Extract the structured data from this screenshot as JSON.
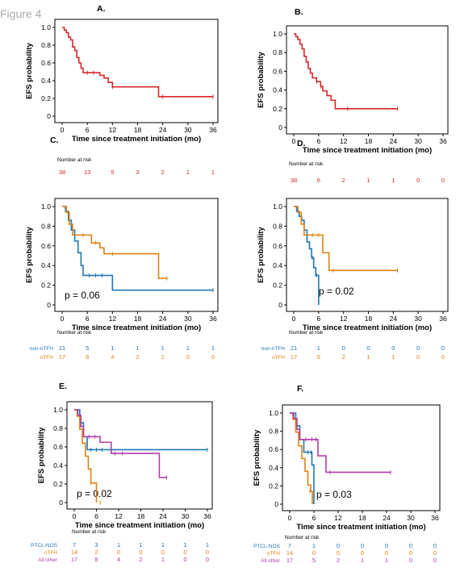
{
  "figure_title": "Figure 4",
  "panels": [
    {
      "id": "A",
      "label": "A.",
      "ylabel": "EFS probability",
      "xlabel": "Time since treatment initiation (mo)",
      "pvalue": "",
      "risk_title": "Number at risk"
    },
    {
      "id": "B",
      "label": "B.",
      "ylabel": "EFS probability",
      "xlabel": "Time since treatment initiation (mo)",
      "pvalue": "",
      "risk_title": "Number at risk"
    },
    {
      "id": "C",
      "label": "C.",
      "ylabel": "EFS probability",
      "xlabel": "Time since treatment initiation (mo)",
      "pvalue": "p = 0.06",
      "risk_title": "Number at risk"
    },
    {
      "id": "D",
      "label": "D.",
      "ylabel": "EFS probability",
      "xlabel": "Time since treatment initiation (mo)",
      "pvalue": "p = 0.02",
      "risk_title": "Number at risk"
    },
    {
      "id": "E",
      "label": "E.",
      "ylabel": "EFS probability",
      "xlabel": "Time since treatment initiation (mo)",
      "pvalue": "p = 0.02",
      "risk_title": "Number at risk"
    },
    {
      "id": "F",
      "label": "F.",
      "ylabel": "EFS probability",
      "xlabel": "Time since treatment initiation (mo)",
      "pvalue": "p = 0.03",
      "risk_title": "Number at risk"
    }
  ],
  "chart_data": [
    {
      "panel": "A",
      "type": "line",
      "step": true,
      "xlim": [
        0,
        36
      ],
      "ylim": [
        0,
        1
      ],
      "xticks": [
        0,
        6,
        12,
        18,
        24,
        30,
        36
      ],
      "yticks": [
        "0",
        "0.2",
        "0.4",
        "0.6",
        "0.8",
        "1.0"
      ],
      "series": [
        {
          "name": "",
          "color": "#d62728",
          "steps": [
            [
              0,
              1.0
            ],
            [
              0.5,
              0.97
            ],
            [
              1,
              0.94
            ],
            [
              1.5,
              0.89
            ],
            [
              2,
              0.86
            ],
            [
              2.5,
              0.78
            ],
            [
              3,
              0.74
            ],
            [
              3.5,
              0.66
            ],
            [
              4,
              0.6
            ],
            [
              4.5,
              0.54
            ],
            [
              5,
              0.49
            ],
            [
              9,
              0.46
            ],
            [
              10,
              0.43
            ],
            [
              11,
              0.38
            ],
            [
              12,
              0.33
            ],
            [
              23,
              0.22
            ],
            [
              36,
              0.22
            ]
          ],
          "censor": [
            [
              6,
              0.49
            ],
            [
              7.5,
              0.49
            ],
            [
              12,
              0.33
            ],
            [
              24,
              0.22
            ],
            [
              36,
              0.22
            ]
          ]
        }
      ],
      "risk_table": {
        "x": [
          0,
          6,
          12,
          18,
          24,
          30,
          36
        ],
        "rows": [
          {
            "label": "",
            "color": "#d62728",
            "values": [
              "38",
              "13",
              "5",
              "3",
              "2",
              "1",
              "1"
            ]
          }
        ]
      }
    },
    {
      "panel": "B",
      "type": "line",
      "step": true,
      "xlim": [
        0,
        36
      ],
      "ylim": [
        0,
        1
      ],
      "xticks": [
        0,
        6,
        12,
        18,
        24,
        30,
        36
      ],
      "yticks": [
        "0",
        "0.2",
        "0.4",
        "0.6",
        "0.8",
        "1.0"
      ],
      "series": [
        {
          "name": "",
          "color": "#d62728",
          "steps": [
            [
              0,
              1.0
            ],
            [
              0.5,
              0.97
            ],
            [
              1,
              0.94
            ],
            [
              1.5,
              0.89
            ],
            [
              2,
              0.84
            ],
            [
              2.5,
              0.76
            ],
            [
              3,
              0.7
            ],
            [
              3.5,
              0.63
            ],
            [
              4,
              0.58
            ],
            [
              4.5,
              0.53
            ],
            [
              5.5,
              0.49
            ],
            [
              6.5,
              0.44
            ],
            [
              7,
              0.39
            ],
            [
              8,
              0.34
            ],
            [
              9,
              0.29
            ],
            [
              10,
              0.2
            ],
            [
              25,
              0.2
            ]
          ],
          "censor": [
            [
              5.5,
              0.49
            ],
            [
              6.5,
              0.44
            ],
            [
              13,
              0.2
            ],
            [
              25,
              0.2
            ]
          ]
        }
      ],
      "risk_table": {
        "x": [
          0,
          6,
          12,
          18,
          24,
          30,
          36
        ],
        "rows": [
          {
            "label": "",
            "color": "#d62728",
            "values": [
              "38",
              "6",
              "2",
              "1",
              "1",
              "0",
              "0"
            ]
          }
        ]
      }
    },
    {
      "panel": "C",
      "type": "line",
      "step": true,
      "xlim": [
        0,
        36
      ],
      "ylim": [
        0,
        1
      ],
      "xticks": [
        0,
        6,
        12,
        18,
        24,
        30,
        36
      ],
      "yticks": [
        "0",
        "0.2",
        "0.4",
        "0.6",
        "0.8",
        "1.0"
      ],
      "series": [
        {
          "name": "non-nTFH",
          "color": "#1f77b4",
          "steps": [
            [
              0,
              1.0
            ],
            [
              0.8,
              0.95
            ],
            [
              1.5,
              0.86
            ],
            [
              2.2,
              0.76
            ],
            [
              3,
              0.65
            ],
            [
              3.8,
              0.53
            ],
            [
              4.5,
              0.4
            ],
            [
              5,
              0.3
            ],
            [
              12,
              0.15
            ],
            [
              36,
              0.15
            ]
          ],
          "censor": [
            [
              6.5,
              0.3
            ],
            [
              8,
              0.3
            ],
            [
              9.5,
              0.3
            ],
            [
              36,
              0.15
            ]
          ]
        },
        {
          "name": "nTFH",
          "color": "#e08214",
          "steps": [
            [
              0,
              1.0
            ],
            [
              1,
              0.94
            ],
            [
              1.7,
              0.82
            ],
            [
              2.5,
              0.71
            ],
            [
              7,
              0.63
            ],
            [
              9,
              0.58
            ],
            [
              10,
              0.52
            ],
            [
              23,
              0.27
            ],
            [
              25,
              0.27
            ]
          ],
          "censor": [
            [
              5,
              0.71
            ],
            [
              8,
              0.63
            ],
            [
              12,
              0.52
            ],
            [
              25,
              0.27
            ]
          ]
        }
      ],
      "risk_table": {
        "x": [
          0,
          6,
          12,
          18,
          24,
          30,
          36
        ],
        "rows": [
          {
            "label": "non-nTFH",
            "color": "#1f77b4",
            "values": [
              "21",
              "5",
              "1",
              "1",
              "1",
              "1",
              "1"
            ]
          },
          {
            "label": "nTFH",
            "color": "#e08214",
            "values": [
              "17",
              "8",
              "4",
              "2",
              "1",
              "0",
              "0"
            ]
          }
        ]
      }
    },
    {
      "panel": "D",
      "type": "line",
      "step": true,
      "xlim": [
        0,
        36
      ],
      "ylim": [
        0,
        1
      ],
      "xticks": [
        0,
        6,
        12,
        18,
        24,
        30,
        36
      ],
      "yticks": [
        "0",
        "0.2",
        "0.4",
        "0.6",
        "0.8",
        "1.0"
      ],
      "series": [
        {
          "name": "non-nTFH",
          "color": "#1f77b4",
          "steps": [
            [
              0,
              1.0
            ],
            [
              0.7,
              0.95
            ],
            [
              1.3,
              0.9
            ],
            [
              1.9,
              0.86
            ],
            [
              2.5,
              0.76
            ],
            [
              3.2,
              0.64
            ],
            [
              3.8,
              0.57
            ],
            [
              4.3,
              0.48
            ],
            [
              4.8,
              0.38
            ],
            [
              5.3,
              0.3
            ],
            [
              6,
              0.0
            ]
          ],
          "censor": [
            [
              4.5,
              0.48
            ],
            [
              5.5,
              0.3
            ]
          ]
        },
        {
          "name": "nTFH",
          "color": "#e08214",
          "steps": [
            [
              0,
              1.0
            ],
            [
              1,
              0.94
            ],
            [
              1.8,
              0.82
            ],
            [
              2.5,
              0.71
            ],
            [
              7,
              0.53
            ],
            [
              8.5,
              0.35
            ],
            [
              25,
              0.35
            ]
          ],
          "censor": [
            [
              4.5,
              0.71
            ],
            [
              6,
              0.71
            ],
            [
              9.5,
              0.35
            ],
            [
              25,
              0.35
            ]
          ]
        }
      ],
      "risk_table": {
        "x": [
          0,
          6,
          12,
          18,
          24,
          30,
          36
        ],
        "rows": [
          {
            "label": "non-nTFH",
            "color": "#1f77b4",
            "values": [
              "21",
              "1",
              "0",
              "0",
              "0",
              "0",
              "0"
            ]
          },
          {
            "label": "nTFH",
            "color": "#e08214",
            "values": [
              "17",
              "5",
              "2",
              "1",
              "1",
              "0",
              "0"
            ]
          }
        ]
      }
    },
    {
      "panel": "E",
      "type": "line",
      "step": true,
      "xlim": [
        0,
        36
      ],
      "ylim": [
        0,
        1
      ],
      "xticks": [
        0,
        6,
        12,
        18,
        24,
        30,
        36
      ],
      "yticks": [
        "0",
        "0.2",
        "0.4",
        "0.6",
        "0.8",
        "1.0"
      ],
      "series": [
        {
          "name": "PTCL-NOS",
          "color": "#1f77b4",
          "steps": [
            [
              0,
              1.0
            ],
            [
              1.5,
              0.86
            ],
            [
              2.5,
              0.71
            ],
            [
              3.5,
              0.57
            ],
            [
              36,
              0.57
            ]
          ],
          "censor": [
            [
              4.5,
              0.57
            ],
            [
              6,
              0.57
            ],
            [
              7.5,
              0.57
            ],
            [
              36,
              0.57
            ]
          ]
        },
        {
          "name": "nTFH",
          "color": "#e08214",
          "steps": [
            [
              0,
              1.0
            ],
            [
              0.8,
              0.93
            ],
            [
              1.5,
              0.79
            ],
            [
              2.2,
              0.64
            ],
            [
              3,
              0.5
            ],
            [
              3.8,
              0.36
            ],
            [
              4.5,
              0.21
            ],
            [
              6,
              0.0
            ]
          ],
          "censor": [
            [
              4.5,
              0.21
            ],
            [
              7,
              0.0
            ]
          ]
        },
        {
          "name": "All other",
          "color": "#b03fa8",
          "steps": [
            [
              0,
              1.0
            ],
            [
              1,
              0.94
            ],
            [
              1.8,
              0.82
            ],
            [
              2.5,
              0.71
            ],
            [
              7,
              0.65
            ],
            [
              10,
              0.53
            ],
            [
              23,
              0.27
            ],
            [
              25,
              0.27
            ]
          ],
          "censor": [
            [
              4,
              0.71
            ],
            [
              5.5,
              0.71
            ],
            [
              11,
              0.53
            ],
            [
              13,
              0.53
            ],
            [
              25,
              0.27
            ]
          ]
        }
      ],
      "risk_table": {
        "x": [
          0,
          6,
          12,
          18,
          24,
          30,
          36
        ],
        "rows": [
          {
            "label": "PTCL-NOS",
            "color": "#1f77b4",
            "values": [
              "7",
              "3",
              "1",
              "1",
              "1",
              "1",
              "1"
            ]
          },
          {
            "label": "nTFH",
            "color": "#e08214",
            "values": [
              "14",
              "2",
              "0",
              "0",
              "0",
              "0",
              "0"
            ]
          },
          {
            "label": "All other",
            "color": "#b03fa8",
            "values": [
              "17",
              "8",
              "4",
              "2",
              "1",
              "0",
              "0"
            ]
          }
        ]
      }
    },
    {
      "panel": "F",
      "type": "line",
      "step": true,
      "xlim": [
        0,
        36
      ],
      "ylim": [
        0,
        1
      ],
      "xticks": [
        0,
        6,
        12,
        18,
        24,
        30,
        36
      ],
      "yticks": [
        "0",
        "0.2",
        "0.4",
        "0.6",
        "0.8",
        "1.0"
      ],
      "series": [
        {
          "name": "PTCL-NOS",
          "color": "#1f77b4",
          "steps": [
            [
              0,
              1.0
            ],
            [
              1.5,
              0.86
            ],
            [
              2.5,
              0.71
            ],
            [
              3.5,
              0.57
            ],
            [
              5.5,
              0.43
            ],
            [
              6,
              0.0
            ]
          ],
          "censor": [
            [
              4.5,
              0.57
            ],
            [
              5.3,
              0.57
            ]
          ]
        },
        {
          "name": "nTFH",
          "color": "#e08214",
          "steps": [
            [
              0,
              1.0
            ],
            [
              0.8,
              0.93
            ],
            [
              1.5,
              0.79
            ],
            [
              2.2,
              0.64
            ],
            [
              3,
              0.5
            ],
            [
              3.8,
              0.36
            ],
            [
              4.5,
              0.21
            ],
            [
              5.2,
              0.14
            ],
            [
              5.6,
              0.0
            ]
          ],
          "censor": [
            [
              5,
              0.14
            ]
          ]
        },
        {
          "name": "All other",
          "color": "#b03fa8",
          "steps": [
            [
              0,
              1.0
            ],
            [
              1,
              0.94
            ],
            [
              1.8,
              0.82
            ],
            [
              2.5,
              0.71
            ],
            [
              7,
              0.53
            ],
            [
              9,
              0.35
            ],
            [
              25,
              0.35
            ]
          ],
          "censor": [
            [
              4,
              0.71
            ],
            [
              5.5,
              0.71
            ],
            [
              6.5,
              0.71
            ],
            [
              10,
              0.35
            ],
            [
              25,
              0.35
            ]
          ]
        }
      ],
      "risk_table": {
        "x": [
          0,
          6,
          12,
          18,
          24,
          30,
          36
        ],
        "rows": [
          {
            "label": "PTCL-NOS",
            "color": "#1f77b4",
            "values": [
              "7",
              "1",
              "0",
              "0",
              "0",
              "0",
              "0"
            ]
          },
          {
            "label": "nTFH",
            "color": "#e08214",
            "values": [
              "14",
              "0",
              "0",
              "0",
              "0",
              "0",
              "0"
            ]
          },
          {
            "label": "All other",
            "color": "#b03fa8",
            "values": [
              "17",
              "5",
              "2",
              "1",
              "1",
              "0",
              "0"
            ]
          }
        ]
      }
    }
  ]
}
